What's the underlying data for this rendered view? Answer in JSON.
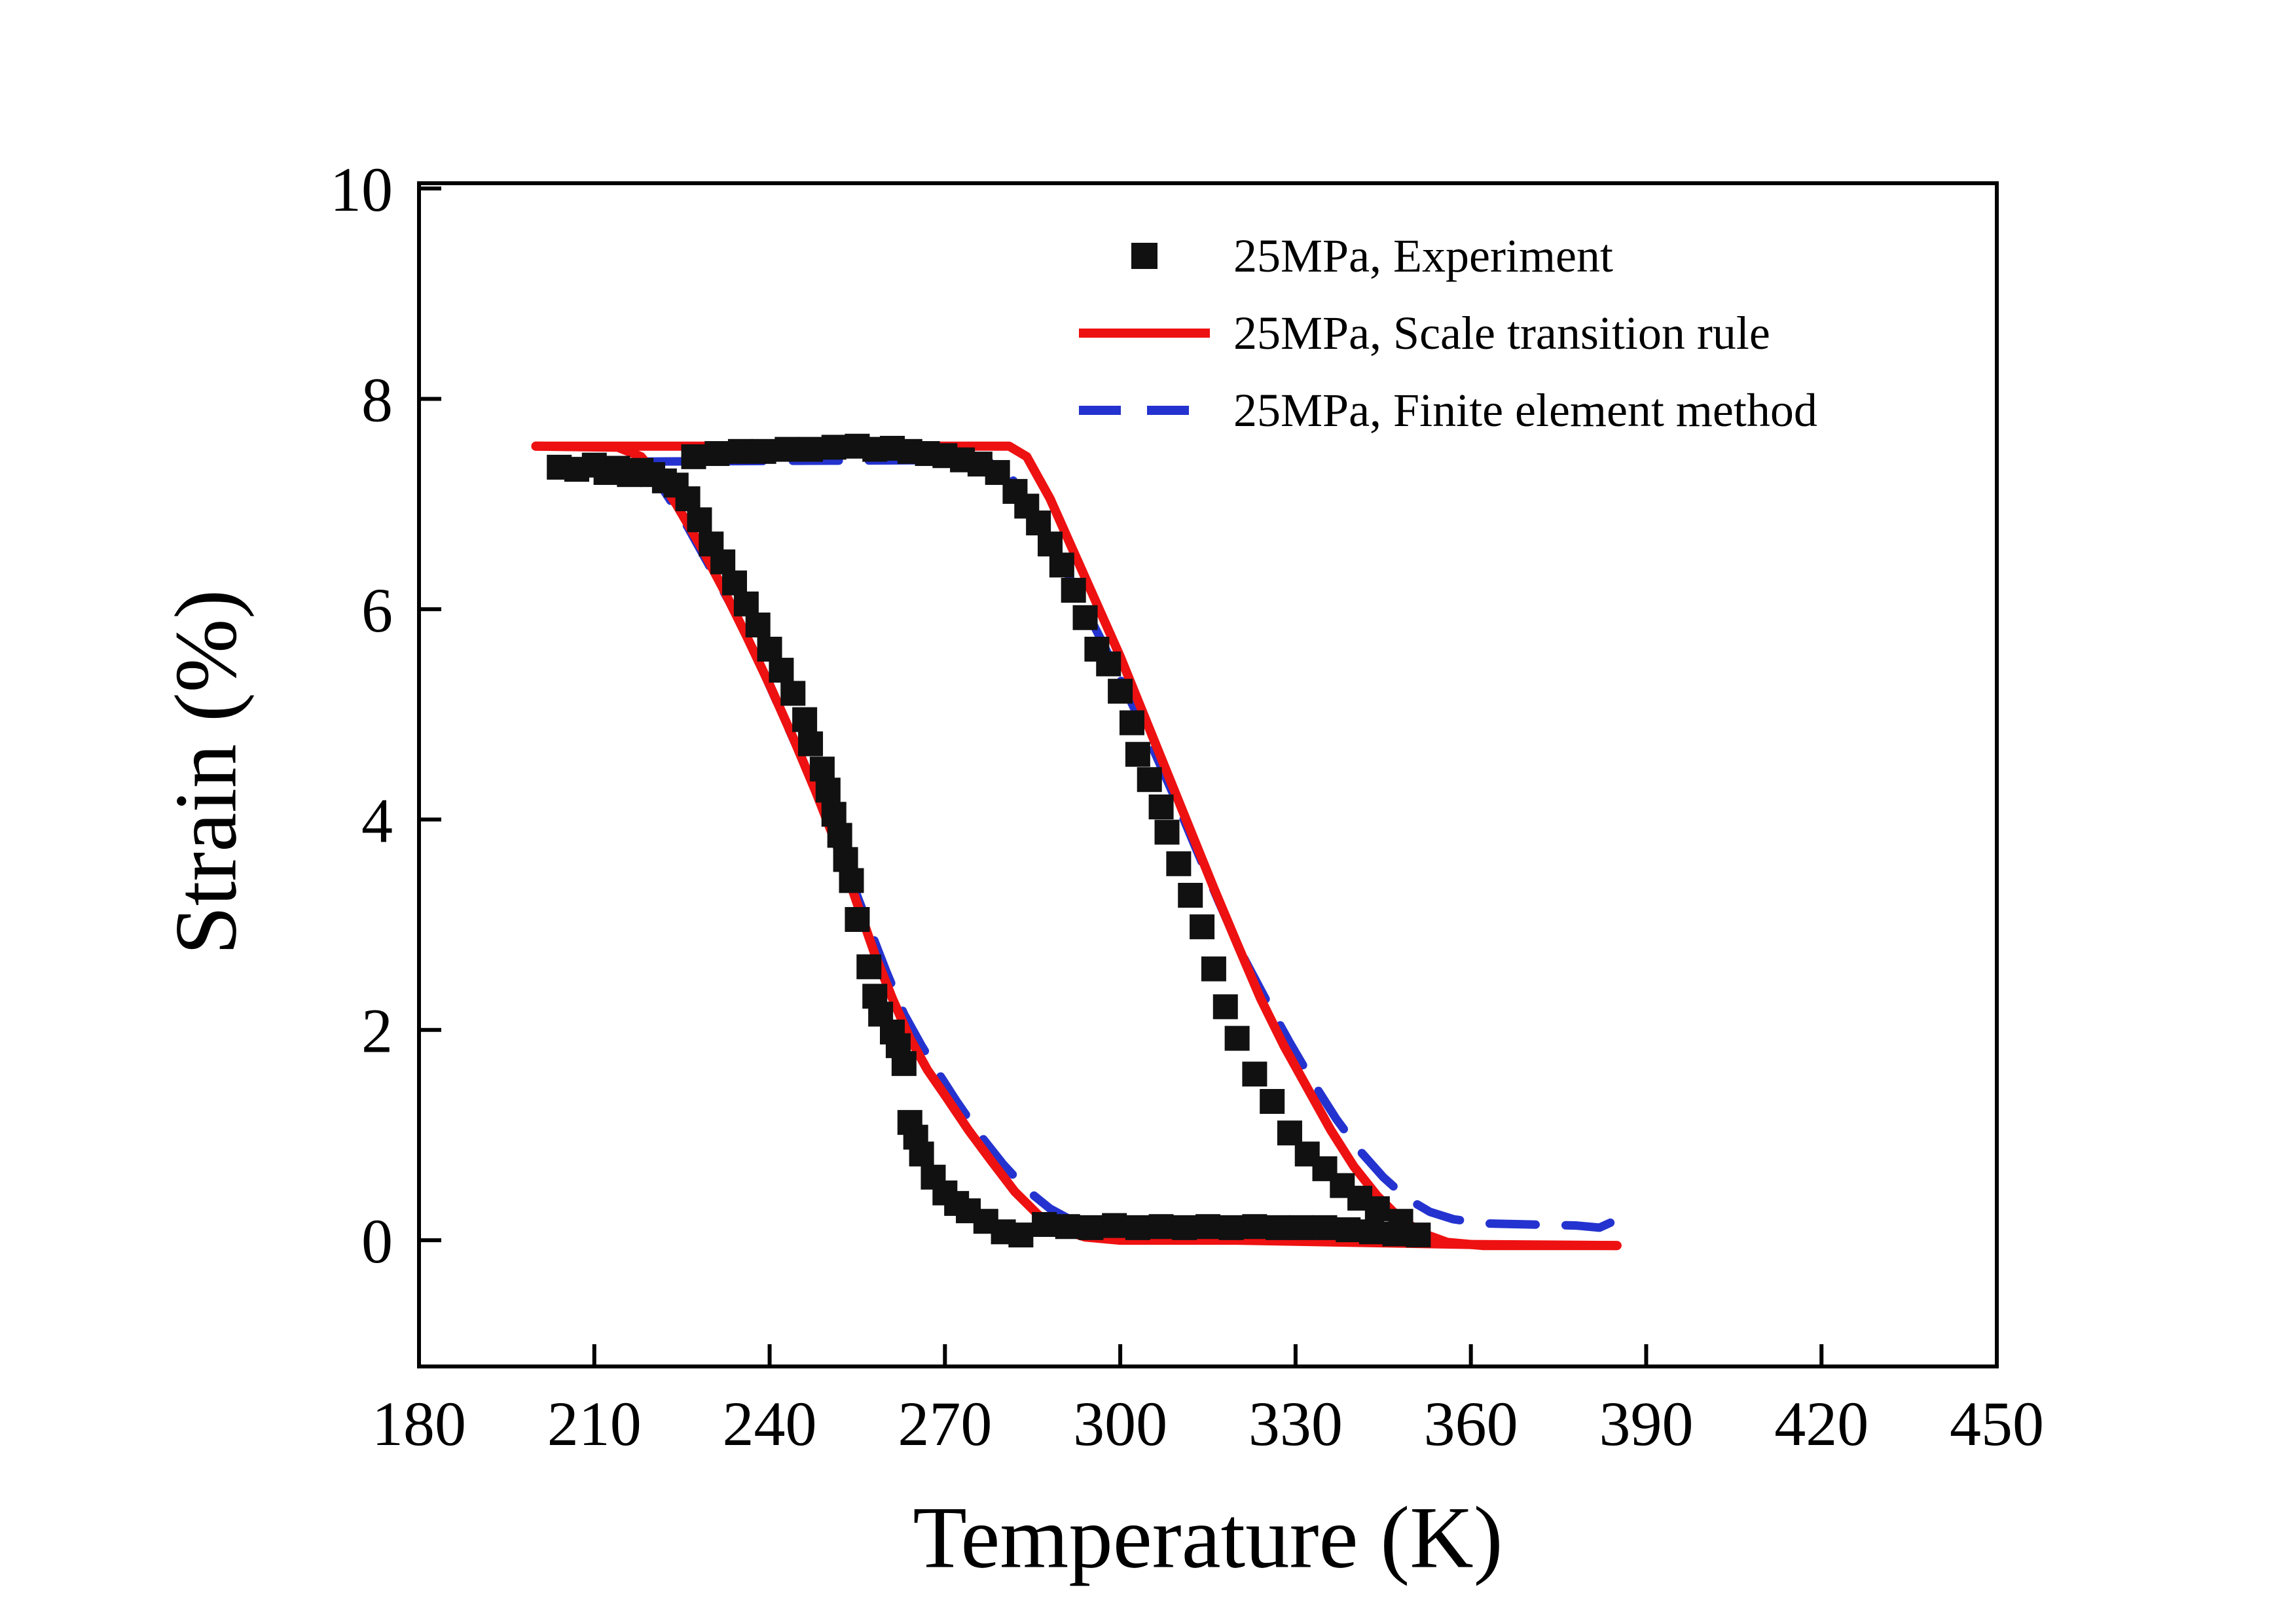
{
  "figure": {
    "background": "#ffffff"
  },
  "legend": {
    "position": "top-center-inside"
  },
  "chart_data": {
    "type": "line",
    "title": "",
    "xlabel": "Temperature (K)",
    "ylabel": "Strain (%)",
    "xlim": [
      180,
      450
    ],
    "ylim": [
      -1.2,
      10.05
    ],
    "xticks": [
      180,
      210,
      240,
      270,
      300,
      330,
      360,
      390,
      420,
      450
    ],
    "yticks": [
      0,
      2,
      4,
      6,
      8,
      10
    ],
    "grid": false,
    "frame_color": "#000000",
    "series": [
      {
        "id": "experiment",
        "name": "25MPa, Experiment",
        "kind": "scatter",
        "marker": "square",
        "marker_size": 38,
        "color": "#111111",
        "points": [
          [
            204,
            7.35
          ],
          [
            207,
            7.33
          ],
          [
            210,
            7.37
          ],
          [
            212,
            7.3
          ],
          [
            214,
            7.34
          ],
          [
            216,
            7.28
          ],
          [
            218,
            7.32
          ],
          [
            220,
            7.28
          ],
          [
            222,
            7.22
          ],
          [
            224,
            7.18
          ],
          [
            227,
            7.45
          ],
          [
            231,
            7.48
          ],
          [
            235,
            7.5
          ],
          [
            239,
            7.5
          ],
          [
            243,
            7.52
          ],
          [
            247,
            7.52
          ],
          [
            251,
            7.54
          ],
          [
            255,
            7.55
          ],
          [
            258,
            7.52
          ],
          [
            261,
            7.53
          ],
          [
            264,
            7.5
          ],
          [
            267,
            7.48
          ],
          [
            270,
            7.46
          ],
          [
            273,
            7.42
          ],
          [
            276,
            7.38
          ],
          [
            279,
            7.3
          ],
          [
            226,
            7.05
          ],
          [
            228,
            6.85
          ],
          [
            230,
            6.62
          ],
          [
            232,
            6.45
          ],
          [
            234,
            6.25
          ],
          [
            236,
            6.05
          ],
          [
            238,
            5.85
          ],
          [
            240,
            5.62
          ],
          [
            242,
            5.42
          ],
          [
            244,
            5.2
          ],
          [
            246,
            4.95
          ],
          [
            247,
            4.72
          ],
          [
            249,
            4.48
          ],
          [
            250,
            4.28
          ],
          [
            251,
            4.05
          ],
          [
            252,
            3.85
          ],
          [
            253,
            3.62
          ],
          [
            254,
            3.42
          ],
          [
            255,
            3.05
          ],
          [
            257,
            2.6
          ],
          [
            258,
            2.32
          ],
          [
            259,
            2.15
          ],
          [
            261,
            1.98
          ],
          [
            262,
            1.85
          ],
          [
            263,
            1.68
          ],
          [
            264,
            1.12
          ],
          [
            265,
            0.98
          ],
          [
            266,
            0.82
          ],
          [
            268,
            0.6
          ],
          [
            270,
            0.45
          ],
          [
            272,
            0.35
          ],
          [
            274,
            0.28
          ],
          [
            277,
            0.18
          ],
          [
            280,
            0.08
          ],
          [
            283,
            0.05
          ],
          [
            287,
            0.15
          ],
          [
            291,
            0.13
          ],
          [
            295,
            0.12
          ],
          [
            299,
            0.14
          ],
          [
            303,
            0.12
          ],
          [
            307,
            0.13
          ],
          [
            311,
            0.12
          ],
          [
            315,
            0.13
          ],
          [
            319,
            0.12
          ],
          [
            323,
            0.13
          ],
          [
            327,
            0.12
          ],
          [
            331,
            0.12
          ],
          [
            335,
            0.12
          ],
          [
            339,
            0.1
          ],
          [
            343,
            0.08
          ],
          [
            347,
            0.06
          ],
          [
            351,
            0.05
          ],
          [
            282,
            7.12
          ],
          [
            284,
            6.98
          ],
          [
            286,
            6.82
          ],
          [
            288,
            6.62
          ],
          [
            290,
            6.42
          ],
          [
            292,
            6.18
          ],
          [
            294,
            5.92
          ],
          [
            296,
            5.62
          ],
          [
            298,
            5.48
          ],
          [
            300,
            5.22
          ],
          [
            302,
            4.92
          ],
          [
            303,
            4.62
          ],
          [
            305,
            4.38
          ],
          [
            307,
            4.12
          ],
          [
            308,
            3.88
          ],
          [
            310,
            3.58
          ],
          [
            312,
            3.28
          ],
          [
            314,
            2.98
          ],
          [
            316,
            2.58
          ],
          [
            318,
            2.22
          ],
          [
            320,
            1.92
          ],
          [
            323,
            1.58
          ],
          [
            326,
            1.32
          ],
          [
            329,
            1.02
          ],
          [
            332,
            0.82
          ],
          [
            335,
            0.68
          ],
          [
            338,
            0.52
          ],
          [
            341,
            0.4
          ],
          [
            344,
            0.3
          ],
          [
            348,
            0.18
          ]
        ]
      },
      {
        "id": "scale-transition-rule",
        "name": "25MPa, Scale transition rule",
        "kind": "line",
        "style": "solid",
        "color": "#ee1111",
        "width": 14,
        "paths": [
          [
            [
              200,
              7.55
            ],
            [
              281,
              7.55
            ],
            [
              284,
              7.45
            ],
            [
              288,
              7.05
            ],
            [
              292,
              6.55
            ],
            [
              296,
              6.05
            ],
            [
              300,
              5.55
            ],
            [
              304,
              5.0
            ],
            [
              308,
              4.45
            ],
            [
              312,
              3.9
            ],
            [
              316,
              3.35
            ],
            [
              320,
              2.82
            ],
            [
              324,
              2.3
            ],
            [
              328,
              1.85
            ],
            [
              332,
              1.45
            ],
            [
              336,
              1.05
            ],
            [
              340,
              0.7
            ],
            [
              344,
              0.42
            ],
            [
              348,
              0.2
            ],
            [
              352,
              0.06
            ],
            [
              356,
              -0.02
            ],
            [
              362,
              -0.05
            ],
            [
              385,
              -0.05
            ]
          ],
          [
            [
              200,
              7.55
            ],
            [
              214,
              7.54
            ],
            [
              218,
              7.45
            ],
            [
              221,
              7.25
            ],
            [
              224,
              7.0
            ],
            [
              228,
              6.62
            ],
            [
              232,
              6.2
            ],
            [
              236,
              5.75
            ],
            [
              240,
              5.28
            ],
            [
              244,
              4.78
            ],
            [
              248,
              4.25
            ],
            [
              252,
              3.68
            ],
            [
              255,
              3.2
            ],
            [
              258,
              2.72
            ],
            [
              261,
              2.3
            ],
            [
              264,
              1.92
            ],
            [
              267,
              1.62
            ],
            [
              270,
              1.38
            ],
            [
              274,
              1.05
            ],
            [
              278,
              0.75
            ],
            [
              282,
              0.46
            ],
            [
              286,
              0.24
            ],
            [
              290,
              0.1
            ],
            [
              294,
              0.03
            ],
            [
              300,
              0.0
            ],
            [
              320,
              0.0
            ],
            [
              340,
              -0.02
            ],
            [
              360,
              -0.04
            ],
            [
              385,
              -0.05
            ]
          ]
        ]
      },
      {
        "id": "finite-element-method",
        "name": "25MPa, Finite element method",
        "kind": "line",
        "style": "dashed",
        "color": "#2433cf",
        "width": 13,
        "dash": "70 46",
        "paths": [
          [
            [
              205,
              7.4
            ],
            [
              277,
              7.42
            ],
            [
              281,
              7.28
            ],
            [
              285,
              6.95
            ],
            [
              289,
              6.55
            ],
            [
              293,
              6.12
            ],
            [
              297,
              5.68
            ],
            [
              301,
              5.22
            ],
            [
              305,
              4.75
            ],
            [
              309,
              4.25
            ],
            [
              313,
              3.72
            ],
            [
              317,
              3.2
            ],
            [
              321,
              2.7
            ],
            [
              325,
              2.28
            ],
            [
              329,
              1.88
            ],
            [
              333,
              1.5
            ],
            [
              337,
              1.15
            ],
            [
              341,
              0.85
            ],
            [
              345,
              0.6
            ],
            [
              349,
              0.4
            ],
            [
              353,
              0.27
            ],
            [
              357,
              0.2
            ],
            [
              362,
              0.16
            ],
            [
              370,
              0.15
            ],
            [
              378,
              0.14
            ],
            [
              382,
              0.12
            ],
            [
              386,
              0.22
            ]
          ],
          [
            [
              205,
              7.4
            ],
            [
              215,
              7.4
            ],
            [
              219,
              7.32
            ],
            [
              222,
              7.12
            ],
            [
              226,
              6.78
            ],
            [
              230,
              6.38
            ],
            [
              234,
              5.98
            ],
            [
              238,
              5.52
            ],
            [
              242,
              5.02
            ],
            [
              246,
              4.52
            ],
            [
              250,
              3.98
            ],
            [
              254,
              3.42
            ],
            [
              257,
              2.98
            ],
            [
              260,
              2.55
            ],
            [
              263,
              2.15
            ],
            [
              266,
              1.85
            ],
            [
              269,
              1.58
            ],
            [
              272,
              1.32
            ],
            [
              276,
              1.0
            ],
            [
              280,
              0.72
            ],
            [
              284,
              0.48
            ],
            [
              288,
              0.3
            ],
            [
              292,
              0.18
            ],
            [
              296,
              0.12
            ],
            [
              304,
              0.1
            ],
            [
              320,
              0.1
            ],
            [
              336,
              0.08
            ],
            [
              350,
              0.05
            ]
          ]
        ]
      }
    ]
  }
}
